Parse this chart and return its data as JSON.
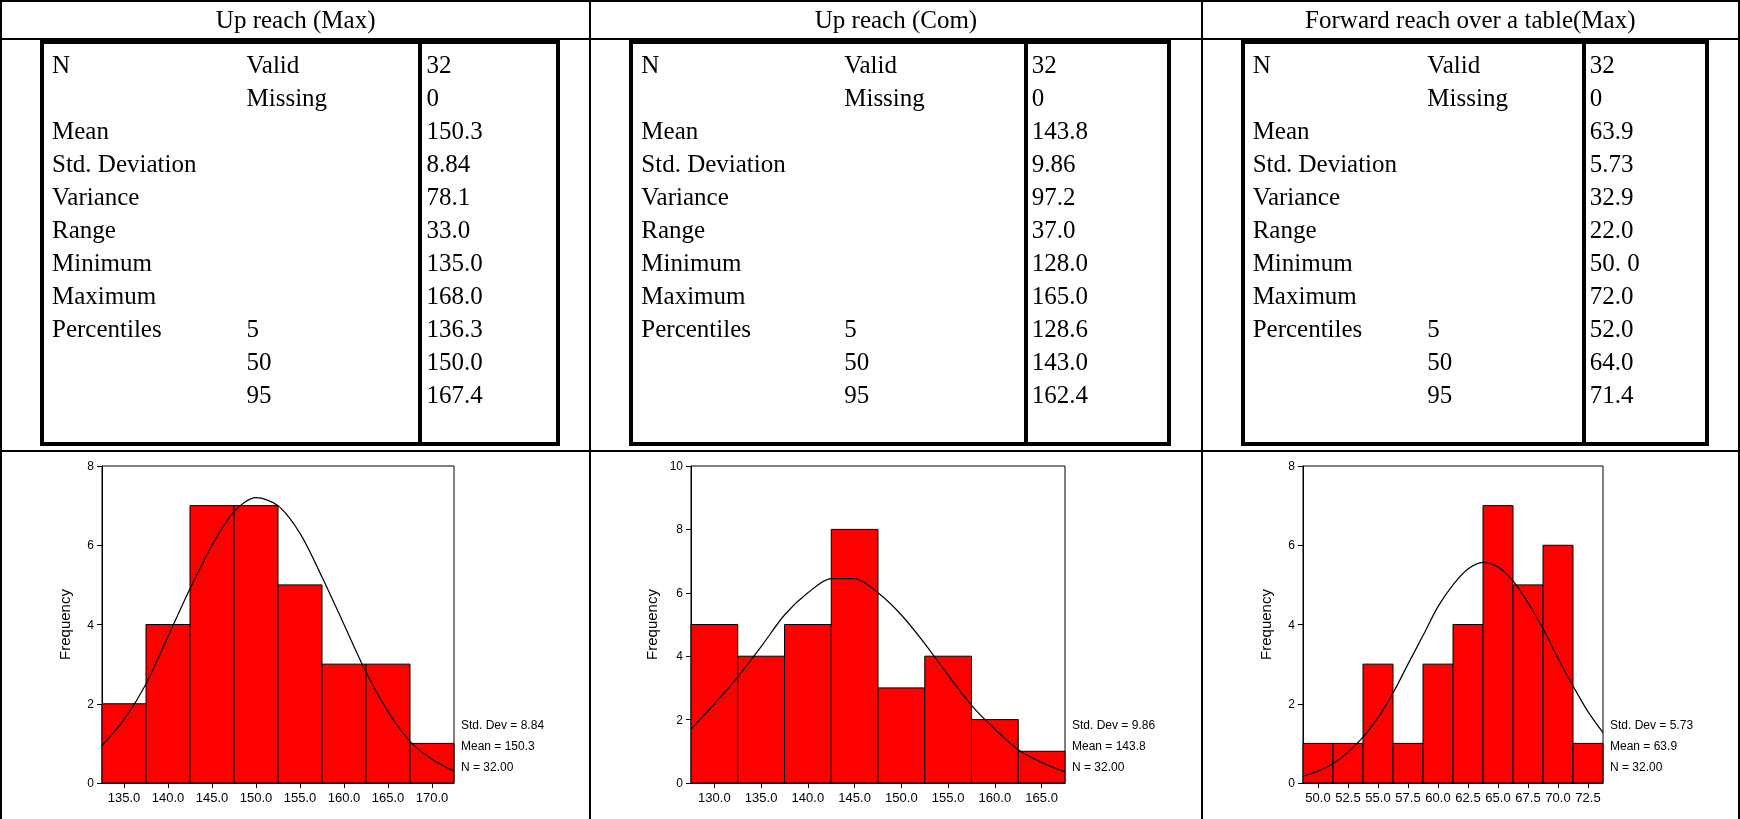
{
  "chart_data": [
    {
      "type": "other",
      "title": "Up reach (Max)",
      "cell_labels": [
        [
          "N",
          "Valid",
          "32"
        ],
        [
          null,
          "Missing",
          "0"
        ],
        [
          "Mean",
          null,
          "150.3"
        ],
        [
          "Std. Deviation",
          null,
          "8.84"
        ],
        [
          "Variance",
          null,
          "78.1"
        ],
        [
          "Range",
          null,
          "33.0"
        ],
        [
          "Minimum",
          null,
          "135.0"
        ],
        [
          "Maximum",
          null,
          "168.0"
        ],
        [
          "Percentiles",
          "5",
          "136.3"
        ],
        [
          null,
          "50",
          "150.0"
        ],
        [
          null,
          "95",
          "167.4"
        ]
      ]
    },
    {
      "type": "other",
      "title": "Up reach (Com)",
      "cell_labels": [
        [
          "N",
          "Valid",
          "32"
        ],
        [
          null,
          "Missing",
          "0"
        ],
        [
          "Mean",
          null,
          "143.8"
        ],
        [
          "Std. Deviation",
          null,
          "9.86"
        ],
        [
          "Variance",
          null,
          "97.2"
        ],
        [
          "Range",
          null,
          "37.0"
        ],
        [
          "Minimum",
          null,
          "128.0"
        ],
        [
          "Maximum",
          null,
          "165.0"
        ],
        [
          "Percentiles",
          "5",
          "128.6"
        ],
        [
          null,
          "50",
          "143.0"
        ],
        [
          null,
          "95",
          "162.4"
        ]
      ]
    },
    {
      "type": "other",
      "title": "Forward reach over a table(Max)",
      "cell_labels": [
        [
          "N",
          "Valid",
          "32"
        ],
        [
          null,
          "Missing",
          "0"
        ],
        [
          "Mean",
          null,
          "63.9"
        ],
        [
          "Std. Deviation",
          null,
          "5.73"
        ],
        [
          "Variance",
          null,
          "32.9"
        ],
        [
          "Range",
          null,
          "22.0"
        ],
        [
          "Minimum",
          null,
          "50. 0"
        ],
        [
          "Maximum",
          null,
          "72.0"
        ],
        [
          "Percentiles",
          "5",
          "52.0"
        ],
        [
          null,
          "50",
          "64.0"
        ],
        [
          null,
          "95",
          "71.4"
        ]
      ]
    },
    {
      "type": "histogram",
      "ylabel": "Frequency",
      "color": "#ff0000",
      "grid": false,
      "bins": [
        132.5,
        137.5,
        142.5,
        147.5,
        152.5,
        157.5,
        162.5,
        167.5,
        172.5
      ],
      "values": [
        2,
        4,
        7,
        7,
        5,
        3,
        3,
        1
      ],
      "series": [
        {
          "type": "line",
          "color": "#000000",
          "x": [
            132.5,
            135,
            137.5,
            140,
            142.5,
            145,
            147.5,
            150,
            152.5,
            155,
            157.5,
            160,
            162.5,
            165,
            167.5,
            170,
            172.5
          ],
          "values": [
            0.95,
            1.6,
            2.5,
            3.7,
            4.9,
            6.0,
            6.85,
            7.2,
            7.0,
            6.3,
            5.2,
            4.0,
            2.8,
            1.8,
            1.05,
            0.6,
            0.3
          ]
        }
      ],
      "xlim": [
        132.5,
        172.5
      ],
      "xticks": [
        {
          "value": 135,
          "label": "135.0"
        },
        {
          "value": 140,
          "label": "140.0"
        },
        {
          "value": 145,
          "label": "145.0"
        },
        {
          "value": 150,
          "label": "150.0"
        },
        {
          "value": 155,
          "label": "155.0"
        },
        {
          "value": 160,
          "label": "160.0"
        },
        {
          "value": 165,
          "label": "165.0"
        },
        {
          "value": 170,
          "label": "170.0"
        }
      ],
      "ylim": [
        0,
        8
      ],
      "yticks": [
        0,
        2,
        4,
        6,
        8
      ],
      "annotations": [
        "Std. Dev = 8.84",
        "Mean = 150.3",
        "N = 32.00"
      ]
    },
    {
      "type": "histogram",
      "ylabel": "Frequency",
      "color": "#ff0000",
      "grid": false,
      "bins": [
        127.5,
        132.5,
        137.5,
        142.5,
        147.5,
        152.5,
        157.5,
        162.5,
        167.5
      ],
      "values": [
        5,
        4,
        5,
        8,
        3,
        4,
        2,
        1
      ],
      "series": [
        {
          "type": "line",
          "color": "#000000",
          "x": [
            127.5,
            130,
            132.5,
            135,
            137.5,
            140,
            142.5,
            145,
            147.5,
            150,
            152.5,
            155,
            157.5,
            160,
            162.5,
            165,
            167.5
          ],
          "values": [
            1.7,
            2.5,
            3.35,
            4.3,
            5.3,
            6.0,
            6.45,
            6.45,
            6.0,
            5.3,
            4.4,
            3.4,
            2.45,
            1.7,
            1.05,
            0.65,
            0.35
          ]
        }
      ],
      "xlim": [
        127.5,
        167.5
      ],
      "xticks": [
        {
          "value": 130,
          "label": "130.0"
        },
        {
          "value": 135,
          "label": "135.0"
        },
        {
          "value": 140,
          "label": "140.0"
        },
        {
          "value": 145,
          "label": "145.0"
        },
        {
          "value": 150,
          "label": "150.0"
        },
        {
          "value": 155,
          "label": "155.0"
        },
        {
          "value": 160,
          "label": "160.0"
        },
        {
          "value": 165,
          "label": "165.0"
        }
      ],
      "ylim": [
        0,
        10
      ],
      "yticks": [
        0,
        2,
        4,
        6,
        8,
        10
      ],
      "annotations": [
        "Std. Dev = 9.86",
        "Mean = 143.8",
        "N = 32.00"
      ]
    },
    {
      "type": "histogram",
      "ylabel": "Frequency",
      "color": "#ff0000",
      "grid": false,
      "bins": [
        48.75,
        51.25,
        53.75,
        56.25,
        58.75,
        61.25,
        63.75,
        66.25,
        68.75,
        71.25,
        73.75
      ],
      "values": [
        1,
        1,
        3,
        1,
        3,
        4,
        7,
        5,
        6,
        1
      ],
      "series": [
        {
          "type": "line",
          "color": "#000000",
          "x": [
            48.75,
            50,
            51.25,
            52.5,
            53.75,
            55,
            56.25,
            57.5,
            58.75,
            60,
            61.25,
            62.5,
            63.75,
            65,
            66.25,
            67.5,
            68.75,
            70,
            71.25,
            72.5,
            73.75
          ],
          "values": [
            0.17,
            0.3,
            0.49,
            0.78,
            1.16,
            1.65,
            2.27,
            3.0,
            3.72,
            4.45,
            5.0,
            5.4,
            5.57,
            5.45,
            5.1,
            4.55,
            3.9,
            3.15,
            2.45,
            1.8,
            1.27
          ]
        }
      ],
      "xlim": [
        48.75,
        73.75
      ],
      "xticks": [
        {
          "value": 50,
          "label": "50.0"
        },
        {
          "value": 52.5,
          "label": "52.5"
        },
        {
          "value": 55,
          "label": "55.0"
        },
        {
          "value": 57.5,
          "label": "57.5"
        },
        {
          "value": 60,
          "label": "60.0"
        },
        {
          "value": 62.5,
          "label": "62.5"
        },
        {
          "value": 65,
          "label": "65.0"
        },
        {
          "value": 67.5,
          "label": "67.5"
        },
        {
          "value": 70,
          "label": "70.0"
        },
        {
          "value": 72.5,
          "label": "72.5"
        }
      ],
      "ylim": [
        0,
        8
      ],
      "yticks": [
        0,
        2,
        4,
        6,
        8
      ],
      "annotations": [
        "Std. Dev = 5.73",
        "Mean = 63.9",
        "N = 32.00"
      ]
    }
  ]
}
